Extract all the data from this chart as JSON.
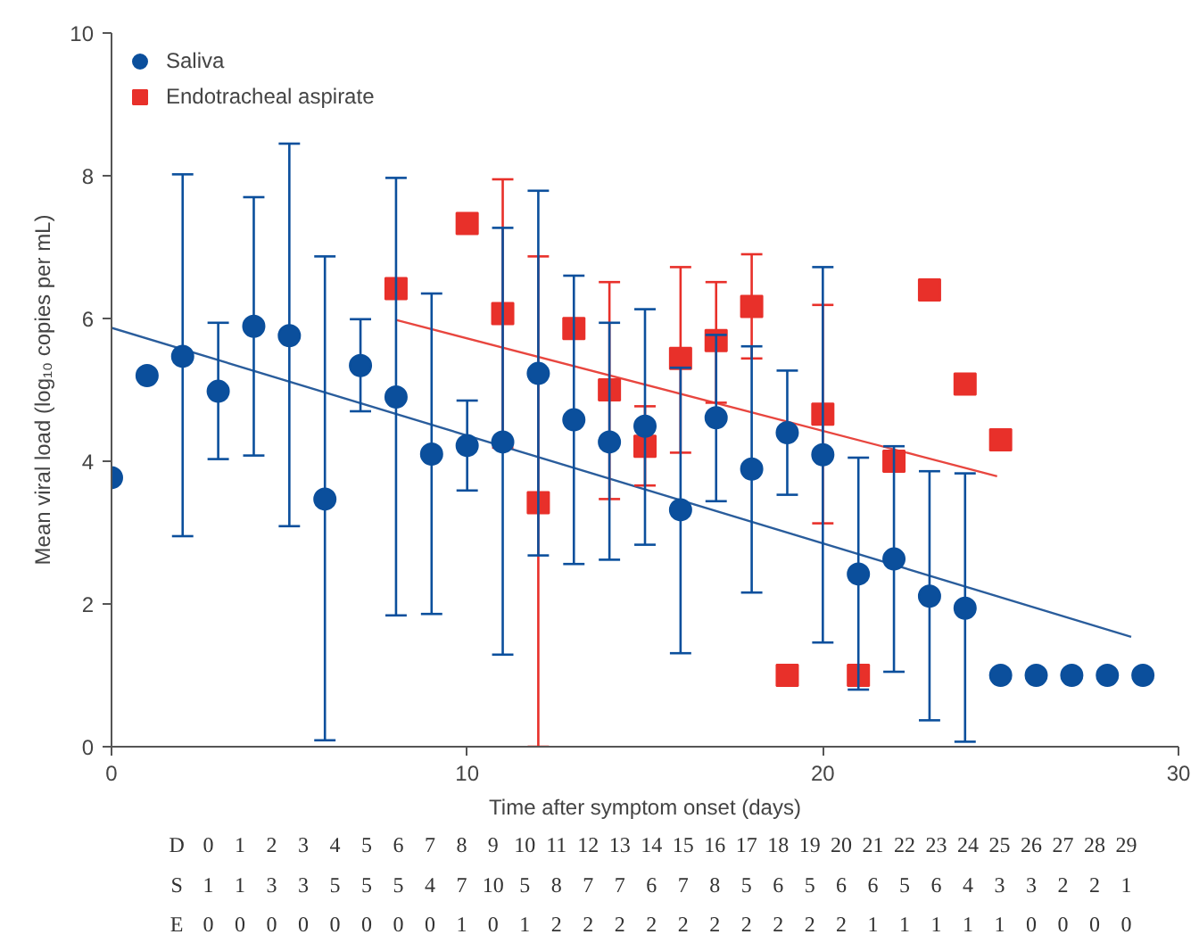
{
  "chart_data": {
    "type": "scatter",
    "xlabel": "Time after symptom onset (days)",
    "ylabel": "Mean viral load (log₁₀ copies per mL)",
    "xlim": [
      0,
      30
    ],
    "xticks": [
      0,
      10,
      20,
      30
    ],
    "ylim": [
      0,
      10
    ],
    "yticks": [
      0,
      2,
      4,
      6,
      8,
      10
    ],
    "grid": false,
    "legend": "top left",
    "series": [
      {
        "name": "Saliva",
        "marker": "circle",
        "color": "#0b4f9c",
        "x": [
          0,
          1,
          2,
          3,
          4,
          5,
          6,
          7,
          8,
          9,
          10,
          11,
          12,
          13,
          14,
          15,
          16,
          17,
          18,
          19,
          20,
          21,
          22,
          23,
          24,
          25,
          26,
          27,
          28,
          29
        ],
        "values": [
          3.77,
          5.2,
          5.47,
          4.98,
          5.89,
          5.76,
          3.47,
          5.34,
          4.9,
          4.1,
          4.22,
          4.27,
          5.23,
          4.58,
          4.27,
          4.49,
          3.32,
          4.61,
          3.89,
          4.4,
          4.09,
          2.42,
          2.63,
          2.11,
          1.94,
          1,
          1,
          1,
          1,
          1
        ],
        "errors": [
          null,
          null,
          [
            2.95,
            8.02
          ],
          [
            4.03,
            5.94
          ],
          [
            4.08,
            7.7
          ],
          [
            3.09,
            8.45
          ],
          [
            0.09,
            6.87
          ],
          [
            4.7,
            5.99
          ],
          [
            1.84,
            7.97
          ],
          [
            1.86,
            6.35
          ],
          [
            3.59,
            4.85
          ],
          [
            1.29,
            7.27
          ],
          [
            2.68,
            7.79
          ],
          [
            2.56,
            6.6
          ],
          [
            2.62,
            5.94
          ],
          [
            2.83,
            6.13
          ],
          [
            1.31,
            5.31
          ],
          [
            3.44,
            5.77
          ],
          [
            2.16,
            5.61
          ],
          [
            3.53,
            5.27
          ],
          [
            1.46,
            6.72
          ],
          [
            0.8,
            4.05
          ],
          [
            1.05,
            4.21
          ],
          [
            0.37,
            3.86
          ],
          [
            0.07,
            3.83
          ],
          null,
          null,
          null,
          null,
          null
        ]
      },
      {
        "name": "Endotracheal aspirate",
        "marker": "square",
        "color": "#e8302a",
        "x": [
          8,
          10,
          11,
          12,
          13,
          14,
          15,
          16,
          17,
          18,
          19,
          20,
          21,
          22,
          23,
          24,
          25
        ],
        "values": [
          6.42,
          7.33,
          6.07,
          3.42,
          5.86,
          5.0,
          4.21,
          5.44,
          5.69,
          6.17,
          1.0,
          4.66,
          1.0,
          4.0,
          6.4,
          5.08,
          4.3
        ],
        "errors": [
          null,
          null,
          [
            4.19,
            7.95
          ],
          [
            0,
            6.87
          ],
          null,
          [
            3.47,
            6.51
          ],
          [
            3.66,
            4.77
          ],
          [
            4.12,
            6.72
          ],
          [
            4.82,
            6.51
          ],
          [
            5.44,
            6.9
          ],
          null,
          [
            3.13,
            6.19
          ],
          null,
          null,
          null,
          null,
          null
        ]
      },
      {
        "type": "line",
        "marker": "none",
        "color": "#2a5d9c",
        "x": [
          0,
          28.67
        ],
        "values": [
          5.87,
          1.54
        ]
      },
      {
        "type": "line",
        "marker": "none",
        "color": "#e8463f",
        "x": [
          8,
          24.9
        ],
        "values": [
          5.98,
          3.79
        ]
      }
    ],
    "annotations": [
      "D 0 1 2 3 4 5 6 7 8 9 10 11 12 13 14 15 16 17 18 19 20 21 22 23 24 25 26 27 28 29",
      "S 1 1 3 3 5 5 5 4 7 10 5 8 7 7 6 7 8 5 6 5 6 6 5 6 4 3 3 2 2 1",
      "E 0 0 0 0 0 0 0 0 1 0 1 2 2 2 2 2 2 2 2 2 2 1 1 1 1 1 0 0 0 0"
    ]
  }
}
